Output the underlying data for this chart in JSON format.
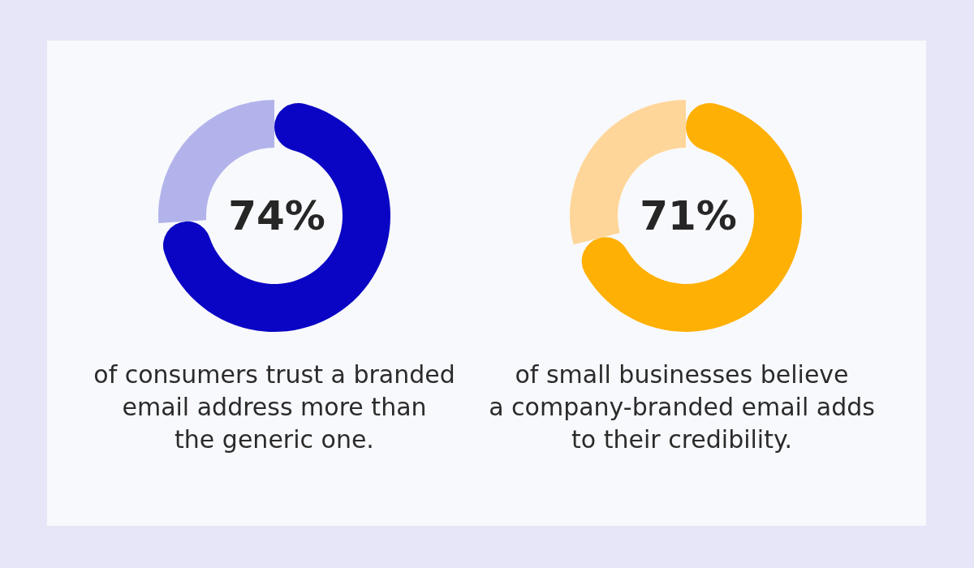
{
  "chart_data": [
    {
      "type": "donut",
      "categories": [
        null,
        null
      ],
      "values": [
        74,
        26
      ],
      "colors": [
        "#0a05c4",
        "#b3b3ec"
      ],
      "value_labels": [
        "74%",
        null
      ],
      "annotations": [
        "of consumers trust a branded\nemail address more than\nthe generic one."
      ]
    },
    {
      "type": "donut",
      "categories": [
        null,
        null
      ],
      "values": [
        71,
        29
      ],
      "colors": [
        "#ffb005",
        "#ffd699"
      ],
      "value_labels": [
        "71%",
        null
      ],
      "annotations": [
        "of small businesses believe\na company-branded email adds\nto their credibility."
      ]
    }
  ]
}
